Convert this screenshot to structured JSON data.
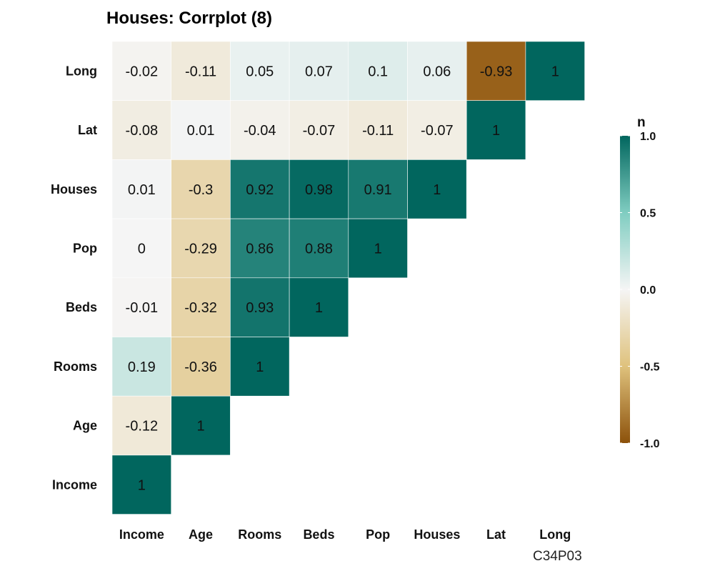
{
  "chart_data": {
    "type": "heatmap",
    "title": "Houses: Corrplot (8)",
    "columns": [
      "Income",
      "Age",
      "Rooms",
      "Beds",
      "Pop",
      "Houses",
      "Lat",
      "Long"
    ],
    "rows": [
      "Long",
      "Lat",
      "Houses",
      "Pop",
      "Beds",
      "Rooms",
      "Age",
      "Income"
    ],
    "values": [
      [
        -0.02,
        -0.11,
        0.05,
        0.07,
        0.1,
        0.06,
        -0.93,
        1
      ],
      [
        -0.08,
        0.01,
        -0.04,
        -0.07,
        -0.11,
        -0.07,
        1,
        null
      ],
      [
        0.01,
        -0.3,
        0.92,
        0.98,
        0.91,
        1,
        null,
        null
      ],
      [
        0,
        -0.29,
        0.86,
        0.88,
        1,
        null,
        null,
        null
      ],
      [
        -0.01,
        -0.32,
        0.93,
        1,
        null,
        null,
        null,
        null
      ],
      [
        0.19,
        -0.36,
        1,
        null,
        null,
        null,
        null,
        null
      ],
      [
        -0.12,
        1,
        null,
        null,
        null,
        null,
        null,
        null
      ],
      [
        1,
        null,
        null,
        null,
        null,
        null,
        null,
        null
      ]
    ],
    "legend": {
      "title": "n",
      "ticks": [
        "1.0",
        "0.5",
        "0.0",
        "-0.5",
        "-1.0"
      ],
      "tick_values": [
        1.0,
        0.5,
        0.0,
        -0.5,
        -1.0
      ],
      "range": [
        -1,
        1
      ],
      "colors": {
        "neg": "#8c510a",
        "neg_mid": "#dfc27d",
        "zero": "#f5f5f5",
        "pos_mid": "#80cdc1",
        "pos": "#01665e"
      }
    }
  },
  "caption": "C34P03"
}
